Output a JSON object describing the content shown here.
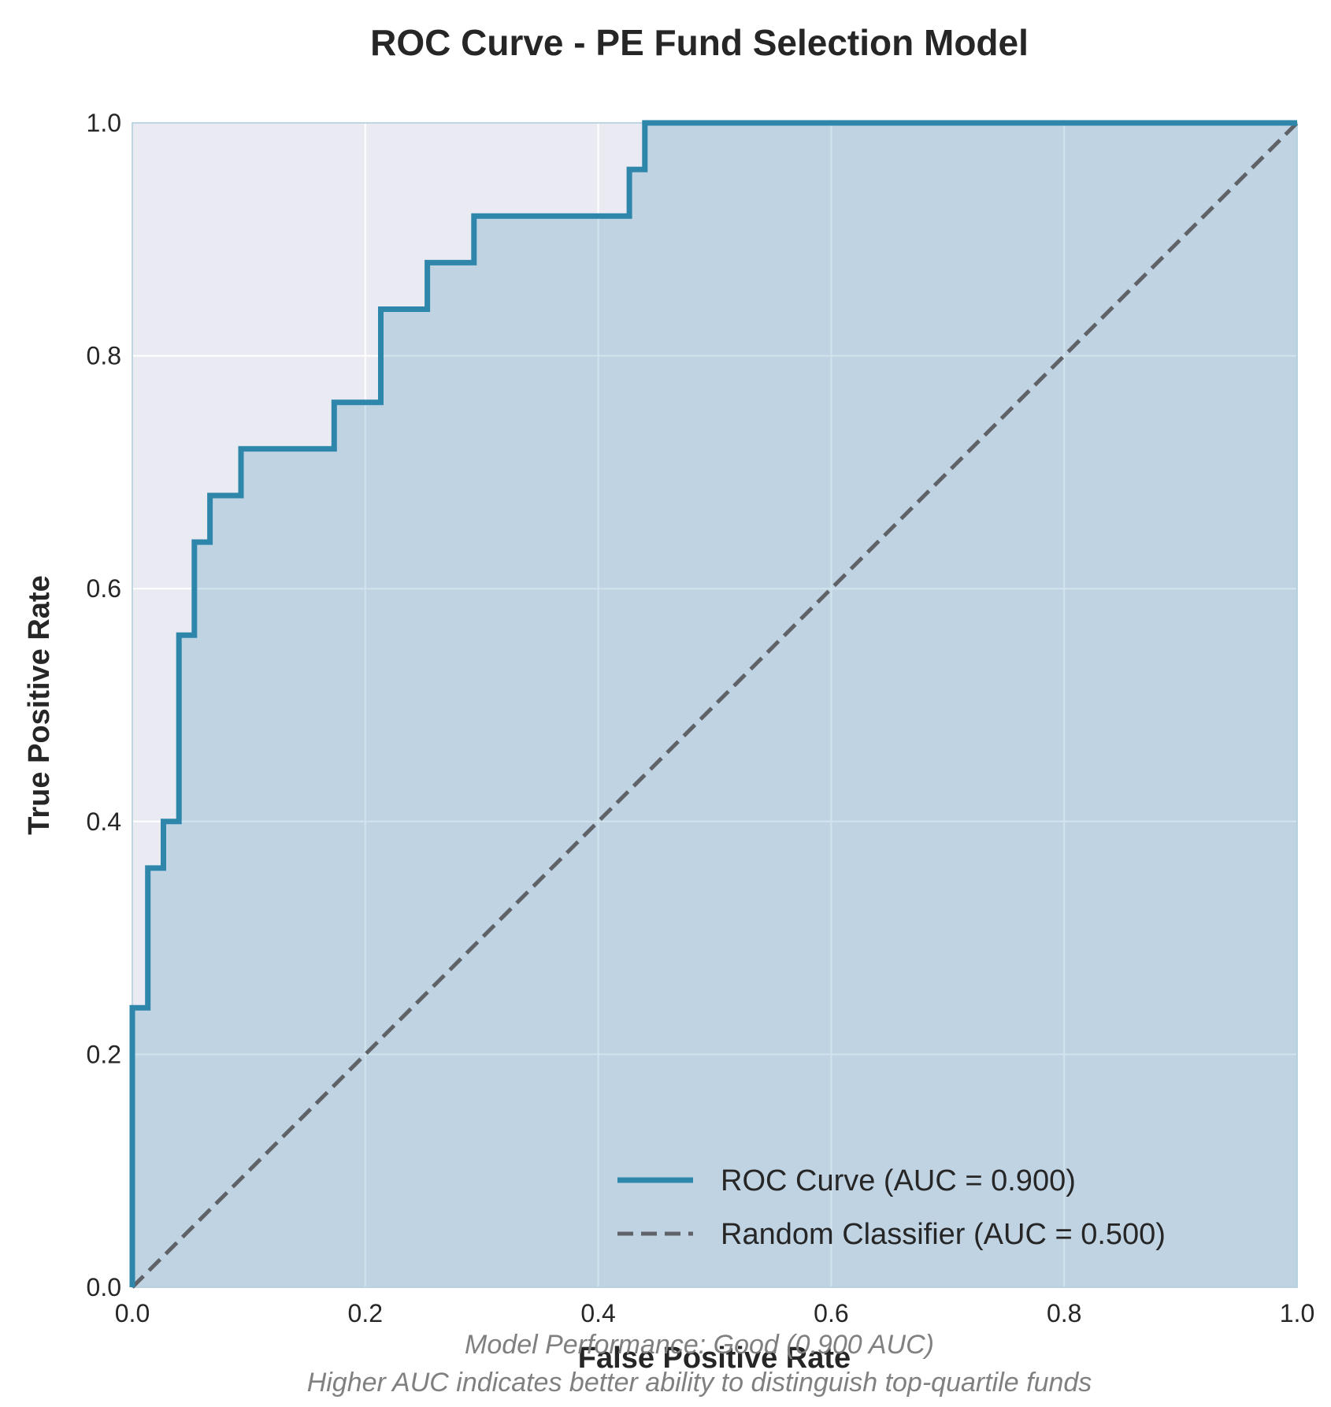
{
  "chart_data": {
    "type": "line",
    "title": "ROC Curve - PE Fund Selection Model",
    "xlabel": "False Positive Rate",
    "ylabel": "True Positive Rate",
    "xlim": [
      0,
      1
    ],
    "ylim": [
      0,
      1
    ],
    "grid": true,
    "legend_position": "bottom-right",
    "x_ticks": [
      "0.0",
      "0.2",
      "0.4",
      "0.6",
      "0.8",
      "1.0"
    ],
    "y_ticks": [
      "0.0",
      "0.2",
      "0.4",
      "0.6",
      "0.8",
      "1.0"
    ],
    "series": [
      {
        "name": "ROC Curve (AUC = 0.900)",
        "style": "step",
        "fill": true,
        "color": "#2e86ab",
        "x": [
          0.0,
          0.0,
          0.0133,
          0.0133,
          0.0267,
          0.0267,
          0.04,
          0.04,
          0.0533,
          0.0533,
          0.0667,
          0.0667,
          0.0933,
          0.0933,
          0.1733,
          0.1733,
          0.2133,
          0.2133,
          0.2533,
          0.2533,
          0.2933,
          0.2933,
          0.4267,
          0.4267,
          0.44,
          0.44,
          1.0
        ],
        "y": [
          0.0,
          0.24,
          0.24,
          0.36,
          0.36,
          0.4,
          0.4,
          0.56,
          0.56,
          0.64,
          0.64,
          0.68,
          0.68,
          0.72,
          0.72,
          0.76,
          0.76,
          0.84,
          0.84,
          0.88,
          0.88,
          0.92,
          0.92,
          0.96,
          0.96,
          1.0,
          1.0
        ]
      },
      {
        "name": "Random Classifier (AUC = 0.500)",
        "style": "dashed",
        "color": "#5f6368",
        "x": [
          0,
          1
        ],
        "y": [
          0,
          1
        ]
      }
    ],
    "annotations": [
      "Model Performance: Good (0.900 AUC)",
      "Higher AUC indicates better ability to distinguish top-quartile funds"
    ]
  },
  "colors": {
    "plot_background": "#eaeaf2",
    "roc_line": "#2e86ab",
    "roc_fill": "#2e86ab",
    "random_line": "#5f6368"
  }
}
